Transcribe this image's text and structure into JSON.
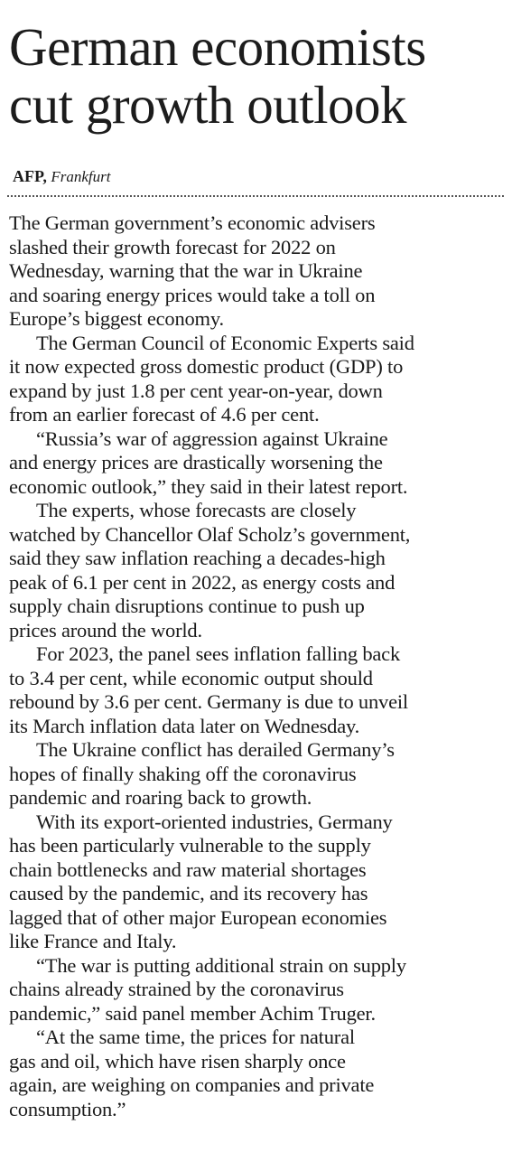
{
  "headline": [
    "German economists",
    "cut growth outlook"
  ],
  "byline": {
    "agency": "AFP,",
    "place": "Frankfurt"
  },
  "paragraphs": [
    {
      "indent": false,
      "lines": [
        "The German government’s economic advisers",
        "slashed their growth forecast for 2022 on",
        "Wednesday, warning that the war in Ukraine",
        "and soaring energy prices would take a toll on",
        "Europe’s biggest economy."
      ]
    },
    {
      "indent": true,
      "lines": [
        "The German Council of Economic Experts said",
        "it now expected gross domestic product (GDP) to",
        "expand by just 1.8 per cent year-on-year, down",
        "from an earlier forecast of 4.6 per cent."
      ]
    },
    {
      "indent": true,
      "lines": [
        "“Russia’s war of aggression against Ukraine",
        "and energy prices are drastically worsening the",
        "economic outlook,” they said in their latest report."
      ]
    },
    {
      "indent": true,
      "lines": [
        "The experts, whose forecasts are closely",
        "watched by Chancellor Olaf Scholz’s government,",
        "said they saw inflation reaching a decades-high",
        "peak of 6.1 per cent in 2022, as energy costs and",
        "supply chain disruptions continue to push up",
        "prices around the world."
      ]
    },
    {
      "indent": true,
      "lines": [
        "For 2023, the panel sees inflation falling back",
        "to 3.4 per cent, while economic output should",
        "rebound by 3.6 per cent. Germany is due to unveil",
        "its March inflation data later on Wednesday."
      ]
    },
    {
      "indent": true,
      "lines": [
        "The Ukraine conflict has derailed Germany’s",
        "hopes of finally shaking off the coronavirus",
        "pandemic and roaring back to growth."
      ]
    },
    {
      "indent": true,
      "lines": [
        "With its export-oriented industries, Germany",
        "has been particularly vulnerable to the supply",
        "chain bottlenecks and raw material shortages",
        "caused by the pandemic, and its recovery has",
        "lagged that of other major European economies",
        "like France and Italy."
      ]
    },
    {
      "indent": true,
      "lines": [
        "“The war is putting additional strain on supply",
        "chains already strained by the coronavirus",
        "pandemic,” said panel member Achim Truger."
      ]
    },
    {
      "indent": true,
      "lines": [
        "“At the same time, the prices for natural",
        "gas and oil, which have risen sharply once",
        "again, are weighing on companies and private",
        "consumption.”"
      ]
    }
  ]
}
